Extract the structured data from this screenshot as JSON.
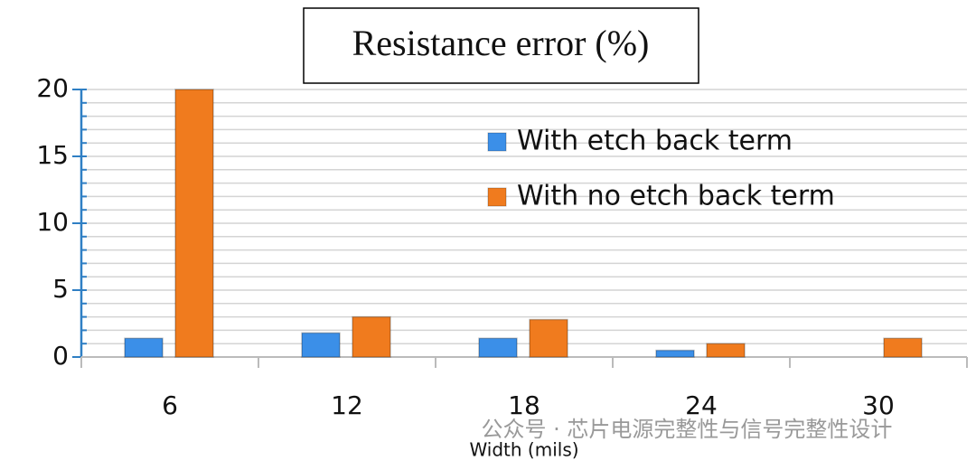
{
  "chart_data": {
    "type": "bar",
    "title": "Resistance error (%)",
    "x_label": "Width (mils)",
    "watermark": "公众号 · 芯片电源完整性与信号完整性设计",
    "categories": [
      "6",
      "12",
      "18",
      "24",
      "30"
    ],
    "series": [
      {
        "name": "With etch back term",
        "color": "#3b8fe8",
        "values": [
          1.4,
          1.8,
          1.4,
          0.5,
          0
        ]
      },
      {
        "name": "With no etch back term",
        "color": "#f07b1e",
        "values": [
          20,
          3.0,
          2.8,
          1.0,
          1.4
        ]
      }
    ],
    "ylim": [
      0,
      20
    ],
    "yticks": [
      0,
      5,
      10,
      15,
      20
    ],
    "grid": true
  }
}
